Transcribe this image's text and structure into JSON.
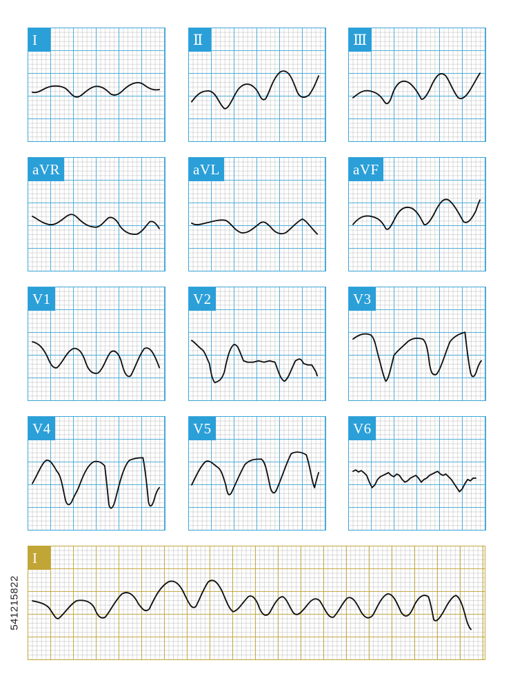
{
  "leads": {
    "I": "I",
    "II": "Ⅱ",
    "III": "Ⅲ",
    "aVR": "aVR",
    "aVL": "aVL",
    "aVF": "aVF",
    "V1": "V1",
    "V2": "V2",
    "V3": "V3",
    "V4": "V4",
    "V5": "V5",
    "V6": "V6",
    "rhythm": "I"
  },
  "watermark_id": "541215822",
  "colors": {
    "grid_major_blue": "#3aa6d8",
    "grid_minor": "#aaaaaa",
    "rhythm_gold": "#c2a537",
    "label_blue": "#2a9fd8",
    "trace": "#111111"
  }
}
